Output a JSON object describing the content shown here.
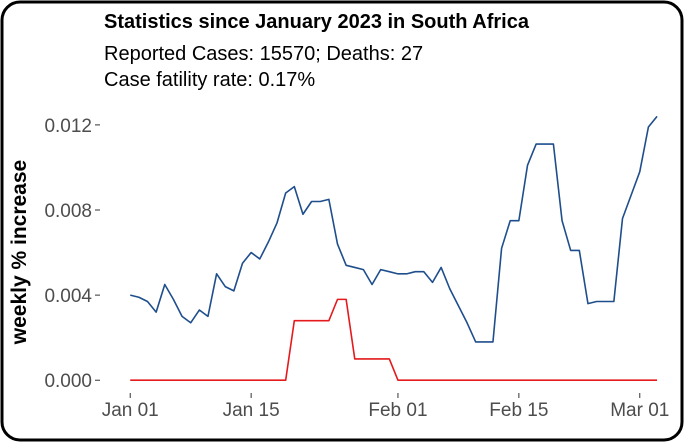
{
  "chart_data": {
    "type": "line",
    "title": "Statistics since January 2023 in  South Africa",
    "subtitle": [
      "Reported Cases: 15570; Deaths: 27",
      "Case fatility rate: 0.17%"
    ],
    "y_label": "weekly % increase",
    "x": [
      "Jan 01",
      "Jan 02",
      "Jan 03",
      "Jan 04",
      "Jan 05",
      "Jan 06",
      "Jan 07",
      "Jan 08",
      "Jan 09",
      "Jan 10",
      "Jan 11",
      "Jan 12",
      "Jan 13",
      "Jan 14",
      "Jan 15",
      "Jan 16",
      "Jan 17",
      "Jan 18",
      "Jan 19",
      "Jan 20",
      "Jan 21",
      "Jan 22",
      "Jan 23",
      "Jan 24",
      "Jan 25",
      "Jan 26",
      "Jan 27",
      "Jan 28",
      "Jan 29",
      "Jan 30",
      "Jan 31",
      "Feb 01",
      "Feb 02",
      "Feb 03",
      "Feb 04",
      "Feb 05",
      "Feb 06",
      "Feb 07",
      "Feb 08",
      "Feb 09",
      "Feb 10",
      "Feb 11",
      "Feb 12",
      "Feb 13",
      "Feb 14",
      "Feb 15",
      "Feb 16",
      "Feb 17",
      "Feb 18",
      "Feb 19",
      "Feb 20",
      "Feb 21",
      "Feb 22",
      "Feb 23",
      "Feb 24",
      "Feb 25",
      "Feb 26",
      "Feb 27",
      "Feb 28",
      "Mar 01",
      "Mar 02",
      "Mar 03"
    ],
    "series": [
      {
        "color": "#1f4e8c",
        "values": [
          0.004,
          0.0039,
          0.0037,
          0.0032,
          0.0045,
          0.0038,
          0.003,
          0.0027,
          0.0033,
          0.003,
          0.005,
          0.0044,
          0.0042,
          0.0055,
          0.006,
          0.0057,
          0.0065,
          0.0074,
          0.0088,
          0.0091,
          0.0078,
          0.0084,
          0.0084,
          0.0085,
          0.0064,
          0.0054,
          0.0053,
          0.0052,
          0.0045,
          0.0052,
          0.0051,
          0.005,
          0.005,
          0.0051,
          0.0051,
          0.0046,
          0.0053,
          0.0043,
          0.0035,
          0.0027,
          0.0018,
          0.0018,
          0.0018,
          0.0062,
          0.0075,
          0.0075,
          0.0101,
          0.0111,
          0.0111,
          0.0111,
          0.0075,
          0.0061,
          0.0061,
          0.0036,
          0.0037,
          0.0037,
          0.0037,
          0.0076,
          0.0087,
          0.0098,
          0.0119,
          0.0124
        ]
      },
      {
        "color": "#e41a1c",
        "values": [
          0,
          0,
          0,
          0,
          0,
          0,
          0,
          0,
          0,
          0,
          0,
          0,
          0,
          0,
          0,
          0,
          0,
          0,
          0,
          0.0028,
          0.0028,
          0.0028,
          0.0028,
          0.0028,
          0.0038,
          0.0038,
          0.001,
          0.001,
          0.001,
          0.001,
          0.001,
          0,
          0,
          0,
          0,
          0,
          0,
          0,
          0,
          0,
          0,
          0,
          0,
          0,
          0,
          0,
          0,
          0,
          0,
          0,
          0,
          0,
          0,
          0,
          0,
          0,
          0,
          0,
          0,
          0,
          0,
          0
        ]
      }
    ],
    "xlim": [
      -3.5,
      62.5
    ],
    "xticks": [
      {
        "value": 0,
        "label": "Jan 01"
      },
      {
        "value": 14,
        "label": "Jan 15"
      },
      {
        "value": 31,
        "label": "Feb 01"
      },
      {
        "value": 45,
        "label": "Feb 15"
      },
      {
        "value": 59,
        "label": "Mar 01"
      }
    ],
    "ylim": [
      -0.0006,
      0.0127
    ],
    "yticks": [
      {
        "value": 0,
        "label": "0.000"
      },
      {
        "value": 0.004,
        "label": "0.004"
      },
      {
        "value": 0.008,
        "label": "0.008"
      },
      {
        "value": 0.012,
        "label": "0.012"
      }
    ],
    "grid": false
  }
}
